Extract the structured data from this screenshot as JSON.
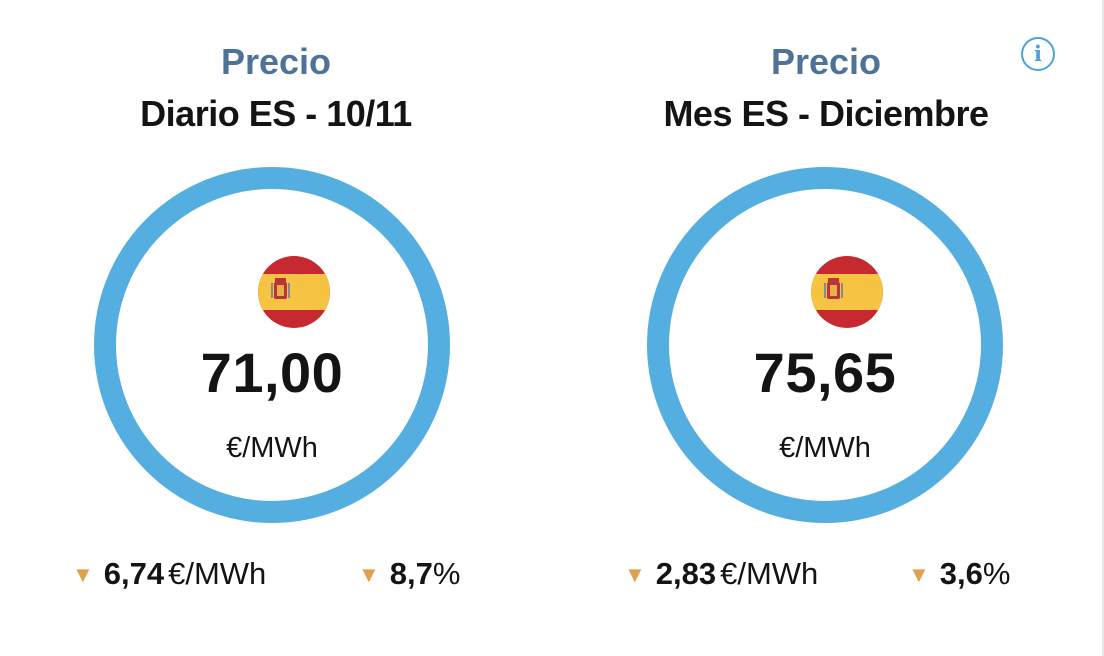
{
  "info": {
    "icon": "info-icon",
    "glyph": "i",
    "color": "#4aa3dc"
  },
  "colors": {
    "title_accent": "#4e7397",
    "ring": "#54aee0",
    "arrow_down": "#e0a04e",
    "flag_red": "#c6292f",
    "flag_yellow": "#f6c343"
  },
  "panels": [
    {
      "title": "Precio",
      "subtitle": "Diario ES - 10/11",
      "flag_icon": "spain-flag-icon",
      "value": "71,00",
      "unit": "€/MWh",
      "change_abs": {
        "arrow": "▼",
        "value": "6,74",
        "unit": "€/MWh"
      },
      "change_pct": {
        "arrow": "▼",
        "value": "8,7",
        "unit": "%"
      }
    },
    {
      "title": "Precio",
      "subtitle": "Mes ES - Diciembre",
      "flag_icon": "spain-flag-icon",
      "value": "75,65",
      "unit": "€/MWh",
      "change_abs": {
        "arrow": "▼",
        "value": "2,83",
        "unit": "€/MWh"
      },
      "change_pct": {
        "arrow": "▼",
        "value": "3,6",
        "unit": "%"
      }
    }
  ]
}
